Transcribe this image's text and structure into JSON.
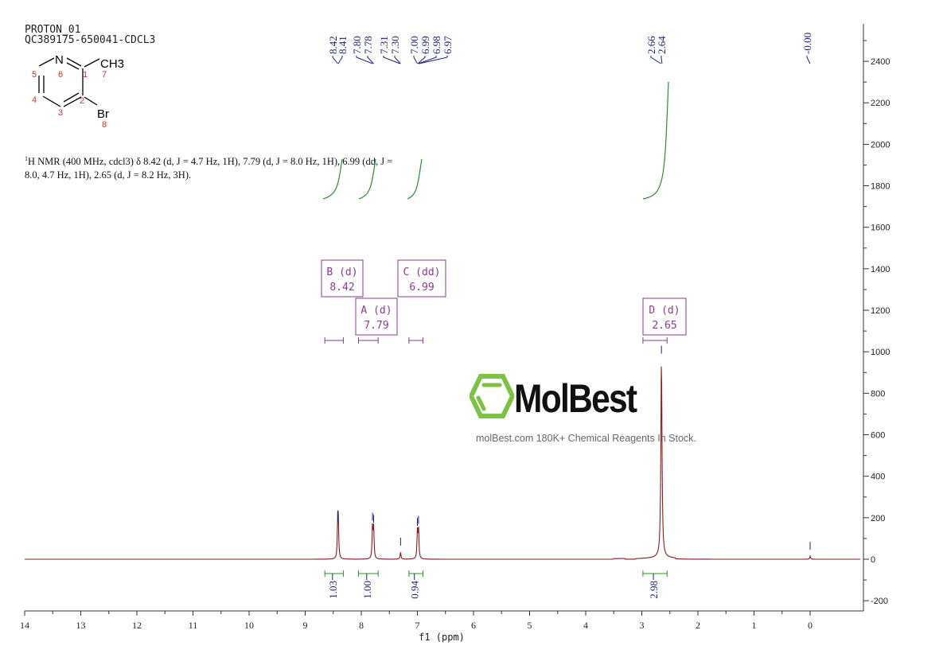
{
  "header": {
    "experiment": "PROTON_01",
    "sample": "QC389175-650041-CDCL3"
  },
  "structure": {
    "atoms": [
      "N",
      "CH3",
      "Br"
    ],
    "numbering": [
      "1",
      "2",
      "3",
      "4",
      "5",
      "6",
      "7",
      "8"
    ]
  },
  "nmr_description": {
    "line1": "H NMR (400 MHz, cdcl3) δ 8.42 (d, J = 4.7 Hz, 1H), 7.79 (d, J = 8.0 Hz, 1H), 6.99 (dd, J =",
    "line2": "8.0, 4.7 Hz, 1H), 2.65 (d, J = 8.2 Hz, 3H)."
  },
  "watermark": {
    "brand": "MolBest",
    "tagline": "molBest.com 180K+ Chemical Reagents In Stock."
  },
  "colors": {
    "spectrum": "#8b1a1a",
    "peak_labels": "#1a237e",
    "integrals": "#2e8b2e",
    "multiplets": "#8b3a8b",
    "logo_green": "#7dc242"
  },
  "chart_data": {
    "type": "line",
    "xlabel": "f1 (ppm)",
    "xlim": [
      14,
      -0.9
    ],
    "x_reversed": true,
    "ylim": [
      -250,
      2550
    ],
    "x_ticks": [
      "14",
      "13",
      "12",
      "11",
      "10",
      "9",
      "8",
      "7",
      "6",
      "5",
      "4",
      "3",
      "2",
      "1",
      "0"
    ],
    "y_ticks": [
      "-200",
      "0",
      "200",
      "400",
      "600",
      "800",
      "1000",
      "1200",
      "1400",
      "1600",
      "1800",
      "2000",
      "2200",
      "2400"
    ],
    "peak_labels": [
      {
        "group": "8.42-8.41",
        "values": [
          "8.42",
          "8.41"
        ]
      },
      {
        "group": "7.80-7.78",
        "values": [
          "7.80",
          "7.78"
        ]
      },
      {
        "group": "7.31-7.30",
        "values": [
          "7.31",
          "7.30"
        ]
      },
      {
        "group": "7.00-6.97",
        "values": [
          "7.00",
          "6.99",
          "6.98",
          "6.97"
        ]
      },
      {
        "group": "2.66-2.64",
        "values": [
          "2.66",
          "2.64"
        ]
      },
      {
        "group": "0",
        "values": [
          "-0.00"
        ]
      }
    ],
    "peaks": [
      {
        "ppm": 8.42,
        "height": 160
      },
      {
        "ppm": 8.41,
        "height": 150
      },
      {
        "ppm": 7.8,
        "height": 155
      },
      {
        "ppm": 7.78,
        "height": 145
      },
      {
        "ppm": 7.3,
        "height": 35
      },
      {
        "ppm": 7.0,
        "height": 130
      },
      {
        "ppm": 6.98,
        "height": 140
      },
      {
        "ppm": 2.65,
        "height": 960
      },
      {
        "ppm": 0.0,
        "height": 15
      }
    ],
    "multiplets": [
      {
        "label": "B (d)",
        "shift": "8.42",
        "range": [
          8.65,
          8.32
        ]
      },
      {
        "label": "A (d)",
        "shift": "7.79",
        "range": [
          8.05,
          7.7
        ]
      },
      {
        "label": "C (dd)",
        "shift": "6.99",
        "range": [
          7.15,
          6.9
        ]
      },
      {
        "label": "D (d)",
        "shift": "2.65",
        "range": [
          2.98,
          2.55
        ]
      }
    ],
    "integrals": [
      {
        "value": "1.03",
        "range": [
          8.65,
          8.32
        ]
      },
      {
        "value": "1.00",
        "range": [
          8.05,
          7.7
        ]
      },
      {
        "value": "0.94",
        "range": [
          7.15,
          6.9
        ]
      },
      {
        "value": "2.98",
        "range": [
          2.98,
          2.55
        ]
      }
    ]
  }
}
